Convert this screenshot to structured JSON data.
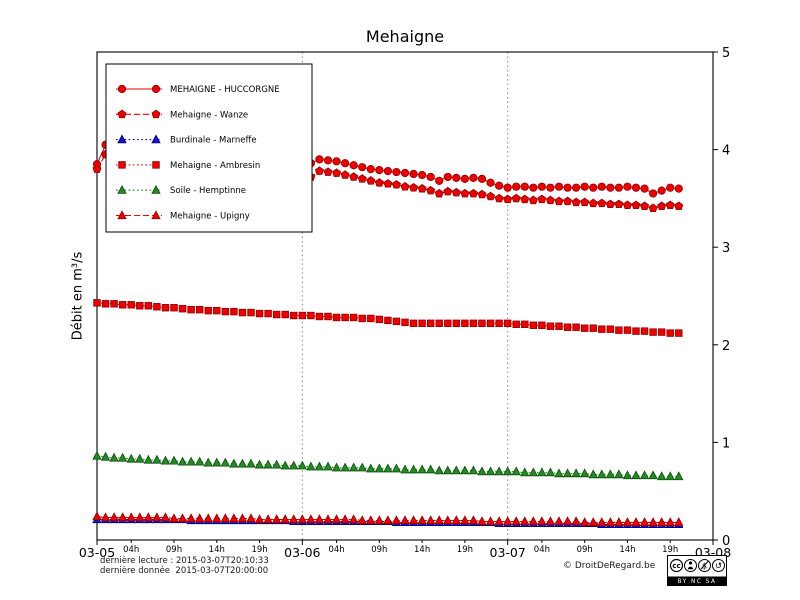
{
  "title": "Mehaigne",
  "footer": {
    "line1": "dernière lecture : 2015-03-07T20:10:33",
    "line2": "dernière donnée  2015-03-07T20:00:00",
    "copyright": "© DroitDeRegard.be",
    "cc_label": "cc",
    "cc_terms": "BY NC SA"
  },
  "chart_data": {
    "type": "line",
    "title": "Mehaigne",
    "ylabel": "Débit en m³/s",
    "ylim": [
      0,
      5
    ],
    "yticks": [
      0,
      1,
      2,
      3,
      4,
      5
    ],
    "xlim_hours": [
      0,
      72
    ],
    "x_axis_note": "hours after 2015-03-05 00:00",
    "x_start_hour": 0,
    "x_step_hours": 1,
    "grid": "vertical dotted at day boundaries",
    "gridlines_x_hours": [
      24,
      48
    ],
    "legend_position": "upper-left",
    "x_major_ticks": [
      {
        "hour": 0,
        "label": "03-05"
      },
      {
        "hour": 24,
        "label": "03-06"
      },
      {
        "hour": 48,
        "label": "03-07"
      },
      {
        "hour": 72,
        "label": "03-08"
      }
    ],
    "x_minor_ticks": [
      {
        "hour": 4,
        "label": "04h"
      },
      {
        "hour": 9,
        "label": "09h"
      },
      {
        "hour": 14,
        "label": "14h"
      },
      {
        "hour": 19,
        "label": "19h"
      },
      {
        "hour": 28,
        "label": "04h"
      },
      {
        "hour": 33,
        "label": "09h"
      },
      {
        "hour": 38,
        "label": "14h"
      },
      {
        "hour": 43,
        "label": "19h"
      },
      {
        "hour": 52,
        "label": "04h"
      },
      {
        "hour": 57,
        "label": "09h"
      },
      {
        "hour": 62,
        "label": "14h"
      },
      {
        "hour": 67,
        "label": "19h"
      }
    ],
    "series": [
      {
        "id": "huccorgne",
        "name": "MEHAIGNE - HUCCORGNE",
        "marker": "circle",
        "linestyle": "solid",
        "line_color": "#e60000",
        "fill_color": "#ee0000",
        "edge_color": "#900000",
        "values": [
          3.85,
          4.05,
          4.22,
          4.0,
          3.96,
          3.92,
          3.9,
          3.88,
          3.87,
          3.86,
          3.85,
          3.84,
          3.83,
          3.82,
          3.81,
          3.8,
          3.79,
          3.78,
          3.77,
          3.76,
          3.75,
          3.73,
          3.71,
          3.68,
          3.64,
          3.86,
          3.9,
          3.89,
          3.88,
          3.86,
          3.84,
          3.82,
          3.8,
          3.79,
          3.78,
          3.77,
          3.76,
          3.75,
          3.74,
          3.72,
          3.68,
          3.72,
          3.71,
          3.7,
          3.71,
          3.7,
          3.66,
          3.63,
          3.61,
          3.62,
          3.62,
          3.61,
          3.62,
          3.61,
          3.62,
          3.61,
          3.61,
          3.62,
          3.61,
          3.62,
          3.61,
          3.61,
          3.62,
          3.61,
          3.6,
          3.55,
          3.58,
          3.61,
          3.6
        ]
      },
      {
        "id": "wanze",
        "name": "Mehaigne - Wanze",
        "marker": "pentagon",
        "linestyle": "dashed",
        "line_color": "#e60000",
        "fill_color": "#ee0000",
        "edge_color": "#900000",
        "values": [
          3.8,
          3.95,
          4.1,
          3.92,
          3.88,
          3.86,
          3.84,
          3.82,
          3.81,
          3.8,
          3.79,
          3.78,
          3.77,
          3.76,
          3.75,
          3.74,
          3.73,
          3.72,
          3.71,
          3.7,
          3.69,
          3.67,
          3.65,
          3.62,
          3.58,
          3.72,
          3.78,
          3.77,
          3.76,
          3.74,
          3.72,
          3.7,
          3.68,
          3.66,
          3.65,
          3.64,
          3.62,
          3.61,
          3.6,
          3.58,
          3.55,
          3.57,
          3.56,
          3.55,
          3.55,
          3.54,
          3.52,
          3.5,
          3.49,
          3.5,
          3.49,
          3.48,
          3.49,
          3.48,
          3.47,
          3.47,
          3.46,
          3.46,
          3.45,
          3.45,
          3.44,
          3.44,
          3.43,
          3.43,
          3.42,
          3.4,
          3.42,
          3.43,
          3.42
        ]
      },
      {
        "id": "marneffe",
        "name": "Burdinale - Marneffe",
        "marker": "triangle",
        "linestyle": "dotted",
        "line_color": "#0000dd",
        "fill_color": "#1414e6",
        "edge_color": "#000066",
        "values": [
          0.21,
          0.21,
          0.21,
          0.21,
          0.21,
          0.21,
          0.21,
          0.21,
          0.21,
          0.21,
          0.21,
          0.2,
          0.2,
          0.2,
          0.2,
          0.2,
          0.2,
          0.2,
          0.2,
          0.2,
          0.2,
          0.2,
          0.2,
          0.19,
          0.19,
          0.19,
          0.19,
          0.19,
          0.19,
          0.19,
          0.19,
          0.19,
          0.19,
          0.19,
          0.19,
          0.18,
          0.18,
          0.18,
          0.18,
          0.18,
          0.18,
          0.18,
          0.18,
          0.18,
          0.18,
          0.18,
          0.18,
          0.17,
          0.17,
          0.17,
          0.17,
          0.17,
          0.17,
          0.17,
          0.17,
          0.17,
          0.17,
          0.17,
          0.17,
          0.16,
          0.16,
          0.16,
          0.16,
          0.16,
          0.16,
          0.16,
          0.16,
          0.16,
          0.16
        ]
      },
      {
        "id": "ambresin",
        "name": "Mehaigne - Ambresin",
        "marker": "square",
        "linestyle": "dotted",
        "line_color": "#e60000",
        "fill_color": "#ee0000",
        "edge_color": "#900000",
        "values": [
          2.43,
          2.42,
          2.42,
          2.41,
          2.41,
          2.4,
          2.4,
          2.39,
          2.38,
          2.38,
          2.37,
          2.36,
          2.36,
          2.35,
          2.35,
          2.34,
          2.34,
          2.33,
          2.33,
          2.32,
          2.32,
          2.31,
          2.31,
          2.3,
          2.3,
          2.3,
          2.29,
          2.29,
          2.28,
          2.28,
          2.28,
          2.27,
          2.27,
          2.26,
          2.25,
          2.24,
          2.23,
          2.22,
          2.22,
          2.22,
          2.22,
          2.22,
          2.22,
          2.22,
          2.22,
          2.22,
          2.22,
          2.22,
          2.22,
          2.21,
          2.21,
          2.2,
          2.2,
          2.19,
          2.19,
          2.18,
          2.18,
          2.17,
          2.17,
          2.16,
          2.16,
          2.15,
          2.15,
          2.14,
          2.14,
          2.13,
          2.13,
          2.12,
          2.12
        ]
      },
      {
        "id": "hemptinne",
        "name": "Soile - Hemptinne",
        "marker": "triangle",
        "linestyle": "dotted",
        "line_color": "#1c7a1c",
        "fill_color": "#228b22",
        "edge_color": "#0a4d0a",
        "values": [
          0.86,
          0.85,
          0.84,
          0.84,
          0.83,
          0.83,
          0.82,
          0.82,
          0.81,
          0.81,
          0.8,
          0.8,
          0.8,
          0.79,
          0.79,
          0.79,
          0.78,
          0.78,
          0.78,
          0.77,
          0.77,
          0.77,
          0.76,
          0.76,
          0.76,
          0.75,
          0.75,
          0.75,
          0.74,
          0.74,
          0.74,
          0.74,
          0.73,
          0.73,
          0.73,
          0.73,
          0.72,
          0.72,
          0.72,
          0.72,
          0.71,
          0.71,
          0.71,
          0.71,
          0.71,
          0.7,
          0.7,
          0.7,
          0.7,
          0.7,
          0.69,
          0.69,
          0.69,
          0.69,
          0.68,
          0.68,
          0.68,
          0.68,
          0.67,
          0.67,
          0.67,
          0.67,
          0.66,
          0.66,
          0.66,
          0.66,
          0.65,
          0.65,
          0.65
        ]
      },
      {
        "id": "upigny",
        "name": "Mehaigne - Upigny",
        "marker": "triangle",
        "linestyle": "dashed",
        "line_color": "#e60000",
        "fill_color": "#ee0000",
        "edge_color": "#900000",
        "values": [
          0.24,
          0.23,
          0.23,
          0.23,
          0.23,
          0.23,
          0.23,
          0.23,
          0.23,
          0.22,
          0.22,
          0.22,
          0.22,
          0.22,
          0.22,
          0.22,
          0.22,
          0.22,
          0.22,
          0.21,
          0.21,
          0.21,
          0.21,
          0.21,
          0.21,
          0.21,
          0.21,
          0.21,
          0.21,
          0.21,
          0.21,
          0.2,
          0.2,
          0.2,
          0.2,
          0.2,
          0.2,
          0.2,
          0.2,
          0.2,
          0.2,
          0.2,
          0.2,
          0.2,
          0.2,
          0.19,
          0.19,
          0.19,
          0.19,
          0.19,
          0.19,
          0.19,
          0.19,
          0.19,
          0.19,
          0.19,
          0.19,
          0.18,
          0.18,
          0.18,
          0.18,
          0.18,
          0.18,
          0.18,
          0.18,
          0.18,
          0.18,
          0.18,
          0.18
        ]
      }
    ]
  }
}
